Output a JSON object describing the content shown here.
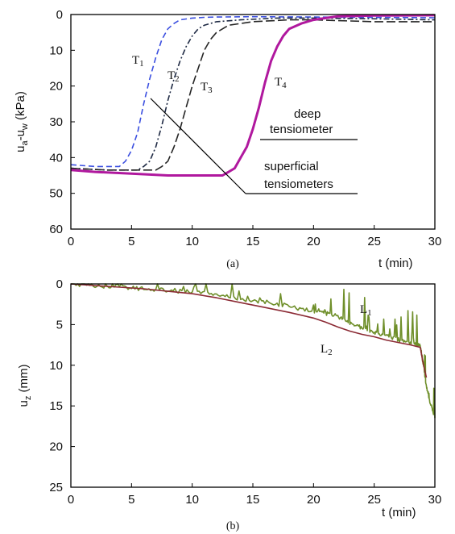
{
  "chart_data": [
    {
      "type": "line",
      "panel_label": "(a)",
      "xlabel": "t (min)",
      "ylabel_main": "u",
      "ylabel_sub1": "a",
      "ylabel_mid": "-u",
      "ylabel_sub2": "w",
      "ylabel_unit": " (kPa)",
      "xlim": [
        0,
        30
      ],
      "ylim": [
        0,
        60
      ],
      "y_inverted": true,
      "xticks": [
        "0",
        "5",
        "10",
        "15",
        "20",
        "25",
        "30"
      ],
      "yticks": [
        "0",
        "10",
        "20",
        "30",
        "40",
        "50",
        "60"
      ],
      "grid": false,
      "series": [
        {
          "label_main": "T",
          "label_sub": "1",
          "color": "#3b4fe0",
          "dash": "dashed",
          "x": [
            0,
            2,
            4,
            4.5,
            5,
            5.5,
            6,
            6.5,
            7,
            7.5,
            8,
            8.5,
            9,
            10,
            11,
            12,
            15,
            20,
            25,
            30
          ],
          "y": [
            42.0,
            42.5,
            42.5,
            41,
            38,
            33,
            25,
            18,
            12,
            7,
            4,
            2.5,
            1.5,
            1,
            0.8,
            0.7,
            0.6,
            0.7,
            0.8,
            0.9
          ]
        },
        {
          "label_main": "T",
          "label_sub": "2",
          "color": "#1f2a44",
          "dash": "dashdot",
          "x": [
            0,
            3,
            5.5,
            6,
            6.5,
            7,
            7.5,
            8,
            8.5,
            9,
            9.5,
            10,
            10.5,
            11,
            12,
            14,
            17,
            20,
            25,
            30
          ],
          "y": [
            43.0,
            43.5,
            43.5,
            42.5,
            41,
            37,
            31,
            24,
            18,
            13,
            9,
            6,
            4,
            3,
            2,
            1.5,
            1,
            1,
            1.2,
            1.5
          ]
        },
        {
          "label_main": "T",
          "label_sub": "3",
          "color": "#262626",
          "dash": "longdash",
          "x": [
            0,
            3,
            6,
            7,
            7.5,
            8,
            8.5,
            9,
            9.5,
            10,
            10.5,
            11,
            11.5,
            12,
            13,
            15,
            18,
            20,
            25,
            30
          ],
          "y": [
            43.0,
            43.5,
            43.5,
            43.5,
            42.5,
            41,
            37,
            32,
            26,
            20,
            15,
            10,
            7,
            5,
            3,
            2,
            1.5,
            1.5,
            2,
            2
          ]
        },
        {
          "label_main": "T",
          "label_sub": "4",
          "color": "#b0189e",
          "dash": "solid",
          "x": [
            0,
            2,
            5,
            8,
            11,
            12.5,
            13,
            13.5,
            14,
            14.5,
            15,
            15.5,
            16,
            16.5,
            17,
            17.5,
            18,
            19,
            20,
            21,
            22,
            25,
            30
          ],
          "y": [
            43.5,
            44,
            44.5,
            45,
            45,
            45,
            44,
            43,
            40,
            37,
            32,
            26,
            19,
            13,
            9,
            6,
            4,
            2.5,
            1.5,
            1,
            0.5,
            0.3,
            0.2
          ]
        }
      ],
      "annotations": [
        {
          "text_line1": "deep",
          "text_line2": "tensiometer"
        },
        {
          "text_line1": "superficial",
          "text_line2": "tensiometers"
        }
      ]
    },
    {
      "type": "line",
      "panel_label": "(b)",
      "xlabel": "t (min)",
      "ylabel_main": "u",
      "ylabel_sub1": "z",
      "ylabel_unit": " (mm)",
      "xlim": [
        0,
        30
      ],
      "ylim": [
        0,
        25
      ],
      "y_inverted": true,
      "xticks": [
        "0",
        "5",
        "10",
        "15",
        "20",
        "25",
        "30"
      ],
      "yticks": [
        "0",
        "5",
        "10",
        "15",
        "20",
        "25"
      ],
      "grid": false,
      "series": [
        {
          "label_main": "L",
          "label_sub": "1",
          "color": "#6f8f2a",
          "noisy": true,
          "x": [
            0,
            2,
            4,
            6,
            8,
            10,
            12,
            14,
            16,
            18,
            20,
            21,
            22,
            23,
            24,
            25,
            26,
            27,
            28,
            28.8,
            29,
            29.3,
            29.6,
            30
          ],
          "y": [
            0,
            0.2,
            0.4,
            0.6,
            0.8,
            1.0,
            1.3,
            1.8,
            2.3,
            2.8,
            3.3,
            3.6,
            4.0,
            4.8,
            5.4,
            5.9,
            6.4,
            6.9,
            7.3,
            7.6,
            9.5,
            12.5,
            14.5,
            16.5
          ]
        },
        {
          "label_main": "L",
          "label_sub": "2",
          "color": "#8b2a34",
          "noisy": false,
          "x": [
            0,
            2,
            4,
            6,
            8,
            10,
            12,
            14,
            16,
            18,
            20,
            21,
            22,
            23,
            24,
            25,
            26,
            27,
            28,
            28.8,
            29,
            29.3
          ],
          "y": [
            0,
            0.2,
            0.4,
            0.6,
            0.9,
            1.2,
            1.7,
            2.3,
            2.9,
            3.5,
            4.2,
            4.7,
            5.3,
            5.8,
            6.2,
            6.5,
            6.9,
            7.2,
            7.5,
            7.8,
            9.5,
            11.5
          ]
        }
      ]
    }
  ]
}
